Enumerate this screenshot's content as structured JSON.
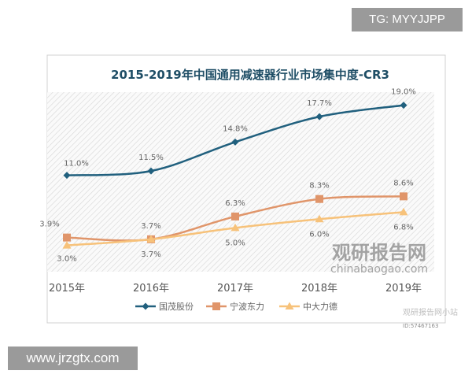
{
  "banner": {
    "top_text": "TG: MYYJJPP",
    "bottom_text": "www.jrzgtx.com"
  },
  "watermark": {
    "cn": "观研报告网",
    "en": "chinabaogao.com",
    "corner": "观研报告网小站",
    "corner_id": "ID:57467163"
  },
  "chart_data": {
    "type": "line",
    "title": "2015-2019年中国通用减速器行业市场集中度-CR3",
    "categories": [
      "2015年",
      "2016年",
      "2017年",
      "2018年",
      "2019年"
    ],
    "ylim": [
      0,
      20.5
    ],
    "grid": false,
    "legend_position": "bottom",
    "series": [
      {
        "name": "国茂股份",
        "values": [
          11.0,
          11.5,
          14.8,
          17.7,
          19.0
        ],
        "labels": [
          "11.0%",
          "11.5%",
          "14.8%",
          "17.7%",
          "19.0%"
        ],
        "color": "#21607e",
        "marker": "diamond"
      },
      {
        "name": "宁波东力",
        "values": [
          3.9,
          3.7,
          6.3,
          8.3,
          8.6
        ],
        "labels": [
          "3.9%",
          "3.7%",
          "6.3%",
          "8.3%",
          "8.6%"
        ],
        "color": "#e0956a",
        "marker": "square"
      },
      {
        "name": "中大力德",
        "values": [
          3.0,
          3.7,
          5.0,
          6.0,
          6.8
        ],
        "labels": [
          "3.0%",
          "3.7%",
          "5.0%",
          "6.0%",
          "6.8%"
        ],
        "color": "#f7c27a",
        "marker": "triangle"
      }
    ]
  }
}
